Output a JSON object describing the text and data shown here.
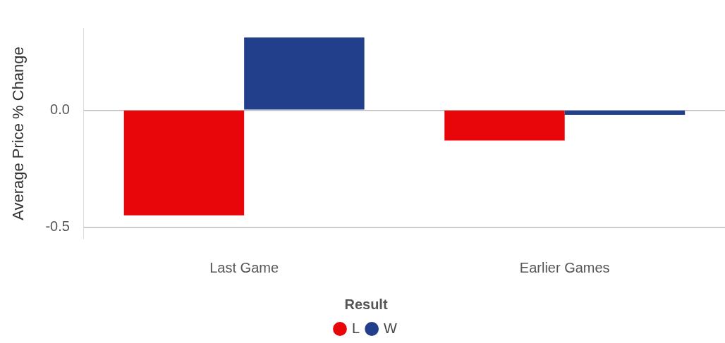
{
  "chart_data": {
    "type": "bar",
    "ylabel": "Average Price % Change",
    "legend_title": "Result",
    "categories": [
      "Last Game",
      "Earlier Games"
    ],
    "series": [
      {
        "name": "L",
        "color": "#e8060a",
        "values": [
          -0.45,
          -0.13
        ]
      },
      {
        "name": "W",
        "color": "#213f8b",
        "values": [
          0.31,
          -0.02
        ]
      }
    ],
    "ylim": [
      -0.55,
      0.35
    ],
    "yticks": [
      {
        "value": -0.5,
        "label": "-0.5"
      },
      {
        "value": 0,
        "label": "0.0"
      }
    ],
    "grid": "y",
    "legend": "bottom"
  }
}
